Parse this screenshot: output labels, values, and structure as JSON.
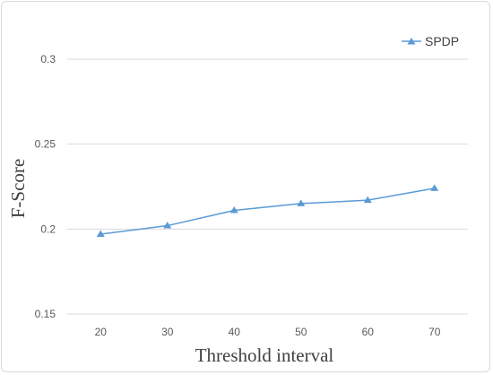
{
  "chart_data": {
    "type": "line",
    "title": "",
    "xlabel": "Threshold interval",
    "ylabel": "F-Score",
    "x": [
      20,
      30,
      40,
      50,
      60,
      70
    ],
    "x_tick_labels": [
      "20",
      "30",
      "40",
      "50",
      "60",
      "70"
    ],
    "ylim": [
      0.15,
      0.3
    ],
    "y_ticks": [
      0.15,
      0.2,
      0.25,
      0.3
    ],
    "y_tick_labels": [
      "0.15",
      "0.2",
      "0.25",
      "0.3"
    ],
    "grid": "horizontal",
    "legend": "top-right",
    "series": [
      {
        "name": "SPDP",
        "marker": "triangle",
        "color": "#5b9bd5",
        "values": [
          0.197,
          0.202,
          0.211,
          0.215,
          0.217,
          0.224
        ]
      }
    ]
  }
}
